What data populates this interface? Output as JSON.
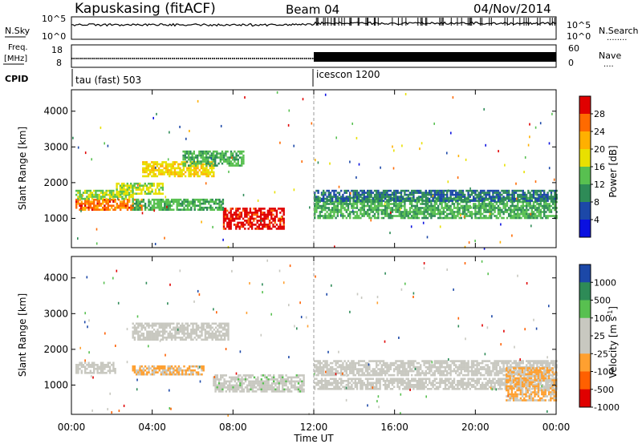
{
  "header": {
    "site": "Kapuskasing (fitACF)",
    "beam": "Beam 04",
    "date": "04/Nov/2014"
  },
  "nsky_panel": {
    "left_label": "N.Sky",
    "right_label": "N.Search",
    "left_ticks": [
      "10^5",
      "10^0"
    ],
    "right_ticks": [
      "10^5",
      "10^0"
    ],
    "right_dots": "........"
  },
  "freq_panel": {
    "left_label": "Freq.",
    "unit": "[MHz]",
    "right_label": "Nave",
    "left_ticks": [
      "18",
      "8"
    ],
    "right_ticks": [
      "60",
      "0"
    ],
    "right_dots": "...."
  },
  "cpid": {
    "label": "CPID",
    "segments": [
      "tau (fast) 503",
      "icescon 1200"
    ]
  },
  "power_panel": {
    "ylabel": "Slant Range [km]",
    "yticks": [
      "4000",
      "3000",
      "2000",
      "1000"
    ],
    "colorbar_label": "Power [dB]",
    "colorbar_ticks": [
      "28",
      "24",
      "20",
      "16",
      "12",
      "8",
      "4"
    ],
    "colorbar_colors": [
      "#e00000",
      "#ff6a00",
      "#ffb000",
      "#e8e000",
      "#58c050",
      "#2e8b57",
      "#1c48a8",
      "#0a10e0"
    ]
  },
  "velocity_panel": {
    "ylabel": "Slant Range [km]",
    "yticks": [
      "4000",
      "3000",
      "2000",
      "1000"
    ],
    "colorbar_label_main": "Velocity [m s",
    "colorbar_label_sup": "-1",
    "colorbar_label_end": "]",
    "colorbar_ticks": [
      "1000",
      "500",
      "100",
      "25",
      "-25",
      "-100",
      "-500",
      "-1000"
    ],
    "colorbar_colors": [
      "#1c48a8",
      "#2e8b57",
      "#58c050",
      "#c8c8c0",
      "#c8c8c0",
      "#ffa030",
      "#ff6000",
      "#e00000"
    ]
  },
  "xaxis": {
    "ticks": [
      "00:00",
      "04:00",
      "08:00",
      "12:00",
      "16:00",
      "20:00",
      "00:00"
    ],
    "label": "Time UT"
  },
  "chart_data": {
    "type": "heatmap",
    "title": "Kapuskasing (fitACF) Beam 04 04/Nov/2014",
    "xlabel": "Time UT",
    "x_range_hours": [
      0,
      24
    ],
    "panels": [
      {
        "name": "Power",
        "ylabel": "Slant Range [km]",
        "ylim": [
          180,
          4600
        ],
        "colorbar": "Power [dB]",
        "clim": [
          0,
          30
        ],
        "regions": [
          {
            "t0": 0.2,
            "t1": 3.5,
            "r0": 1250,
            "r1": 1550,
            "value": 24
          },
          {
            "t0": 0.2,
            "t1": 3.0,
            "r0": 1550,
            "r1": 1800,
            "value": 14
          },
          {
            "t0": 2.2,
            "t1": 4.5,
            "r0": 1700,
            "r1": 2000,
            "value": 16
          },
          {
            "t0": 3.5,
            "t1": 7.0,
            "r0": 2200,
            "r1": 2600,
            "value": 18
          },
          {
            "t0": 5.5,
            "t1": 8.5,
            "r0": 2500,
            "r1": 2900,
            "value": 12
          },
          {
            "t0": 7.5,
            "t1": 10.5,
            "r0": 700,
            "r1": 1300,
            "value": 28
          },
          {
            "t0": 3.0,
            "t1": 7.5,
            "r0": 1250,
            "r1": 1550,
            "value": 12
          },
          {
            "t0": 12.0,
            "t1": 24.0,
            "r0": 1000,
            "r1": 1600,
            "value": 12
          },
          {
            "t0": 12.0,
            "t1": 24.0,
            "r0": 1500,
            "r1": 1800,
            "value": 8
          }
        ]
      },
      {
        "name": "Velocity",
        "ylabel": "Slant Range [km]",
        "ylim": [
          180,
          4600
        ],
        "colorbar": "Velocity [m s^-1]",
        "clim": [
          -1000,
          1000
        ],
        "regions": [
          {
            "t0": 0.2,
            "t1": 2.2,
            "r0": 1350,
            "r1": 1650,
            "value": 0
          },
          {
            "t0": 3.0,
            "t1": 6.5,
            "r0": 1300,
            "r1": 1550,
            "value": -300
          },
          {
            "t0": 3.0,
            "t1": 7.8,
            "r0": 2300,
            "r1": 2750,
            "value": 0
          },
          {
            "t0": 7.0,
            "t1": 11.5,
            "r0": 800,
            "r1": 1300,
            "value": 100
          },
          {
            "t0": 12.0,
            "t1": 24.0,
            "r0": 1300,
            "r1": 1700,
            "value": 0
          },
          {
            "t0": 12.0,
            "t1": 24.0,
            "r0": 900,
            "r1": 1200,
            "value": 0
          },
          {
            "t0": 21.5,
            "t1": 24.0,
            "r0": 600,
            "r1": 1500,
            "value": -300
          }
        ]
      }
    ]
  }
}
